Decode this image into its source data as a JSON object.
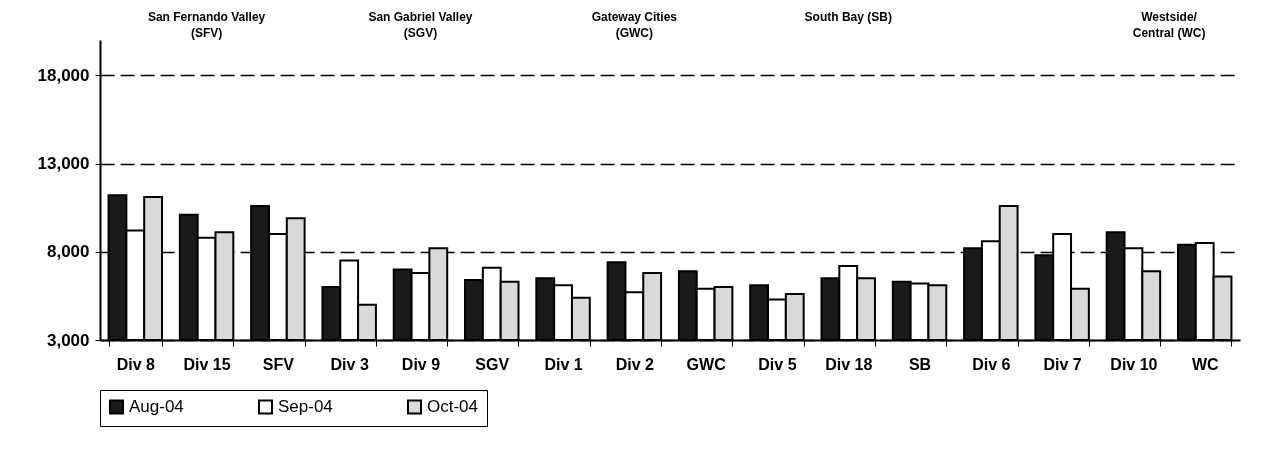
{
  "chart_data": {
    "type": "bar",
    "categories": [
      "Div 8",
      "Div 15",
      "SFV",
      "Div 3",
      "Div 9",
      "SGV",
      "Div 1",
      "Div 2",
      "GWC",
      "Div 5",
      "Div 18",
      "SB",
      "Div 6",
      "Div 7",
      "Div 10",
      "WC"
    ],
    "series": [
      {
        "name": "Aug-04",
        "color": "#1a1a1a",
        "values": [
          11200,
          10100,
          10600,
          6000,
          7000,
          6400,
          6500,
          7400,
          6900,
          6100,
          6500,
          6300,
          8200,
          7800,
          9100,
          8400
        ]
      },
      {
        "name": "Sep-04",
        "color": "#ffffff",
        "values": [
          9200,
          8800,
          9000,
          7500,
          6800,
          7100,
          6100,
          5700,
          5900,
          5300,
          7200,
          6200,
          8600,
          9000,
          8200,
          8500
        ]
      },
      {
        "name": "Oct-04",
        "color": "#d9d9d9",
        "values": [
          11100,
          9100,
          9900,
          5000,
          8200,
          6300,
          5400,
          6800,
          6000,
          5600,
          6500,
          6100,
          10600,
          5900,
          6900,
          6600
        ]
      }
    ],
    "ylim": [
      3000,
      20000
    ],
    "yticks": [
      {
        "value": 3000,
        "label": "3,000"
      },
      {
        "value": 8000,
        "label": "8,000"
      },
      {
        "value": 13000,
        "label": "13,000"
      },
      {
        "value": 18000,
        "label": "18,000"
      }
    ],
    "grid": "y",
    "line_style": "dashed",
    "legend": "bottom",
    "annotations": [
      "San Fernando Valley\n(SFV)",
      "San Gabriel Valley\n(SGV)",
      "Gateway Cities\n(GWC)",
      "South Bay (SB)",
      "Westside/\nCentral (WC)"
    ]
  }
}
